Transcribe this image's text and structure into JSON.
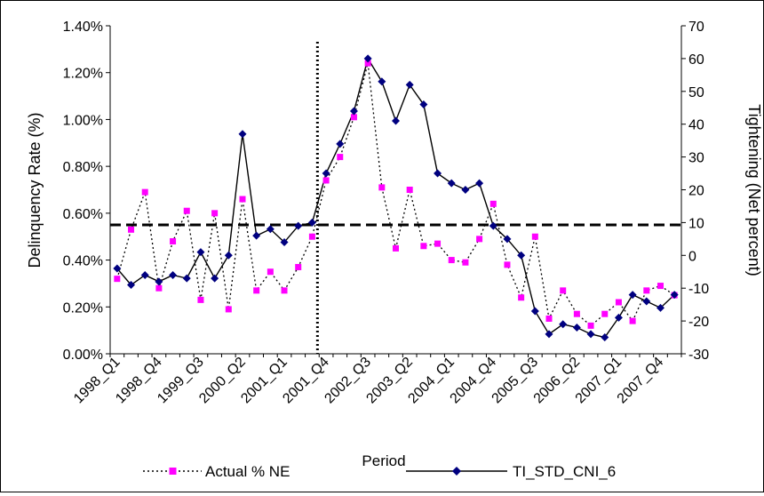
{
  "chart_data": {
    "type": "line",
    "x_tick_labels": [
      "1998_Q1",
      "1998_Q4",
      "1999_Q3",
      "2000_Q2",
      "2001_Q1",
      "2001_Q4",
      "2002_Q3",
      "2003_Q2",
      "2004_Q1",
      "2004_Q4",
      "2005_Q3",
      "2006_Q2",
      "2007_Q1",
      "2007_Q4"
    ],
    "xlabel": "Period",
    "ylabel_left": "Delinquency Rate (%)",
    "ylabel_right": "Tightening (Net percent)",
    "ylim_left": [
      0,
      1.4
    ],
    "ylim_right": [
      -30,
      70
    ],
    "left_ticks": [
      "0.00%",
      "0.20%",
      "0.40%",
      "0.60%",
      "0.80%",
      "1.00%",
      "1.20%",
      "1.40%"
    ],
    "right_ticks": [
      "-30",
      "-20",
      "-10",
      "0",
      "10",
      "20",
      "30",
      "40",
      "50",
      "60",
      "70"
    ],
    "legend_position": "bottom",
    "grid": false,
    "horizontal_reference_line": {
      "axis": "left",
      "value": 0.55,
      "style": "dashed"
    },
    "vertical_reference_line": {
      "period_index": 15,
      "style": "dotted"
    },
    "series": [
      {
        "name": "Actual % NE",
        "axis": "left",
        "color": "#ff00ff",
        "line_style": "dotted",
        "marker": "square",
        "values": [
          0.32,
          0.53,
          0.69,
          0.28,
          0.48,
          0.61,
          0.23,
          0.6,
          0.19,
          0.66,
          0.27,
          0.35,
          0.27,
          0.37,
          0.5,
          0.74,
          0.84,
          1.01,
          1.24,
          0.71,
          0.45,
          0.7,
          0.46,
          0.47,
          0.4,
          0.39,
          0.49,
          0.64,
          0.38,
          0.24,
          0.5,
          0.15,
          0.27,
          0.17,
          0.12,
          0.17,
          0.22,
          0.14,
          0.27,
          0.29,
          0.25
        ]
      },
      {
        "name": "TI_STD_CNI_6",
        "axis": "right",
        "color": "#000080",
        "line_style": "solid",
        "marker": "diamond",
        "values": [
          -4,
          -9,
          -6,
          -8,
          -6,
          -7,
          1,
          -7,
          0,
          37,
          6,
          8,
          4,
          9,
          10,
          25,
          34,
          44,
          60,
          53,
          41,
          52,
          46,
          25,
          22,
          20,
          22,
          9,
          5,
          0,
          -17,
          -24,
          -21,
          -22,
          -24,
          -25,
          -19,
          -12,
          -14,
          -16,
          -12
        ]
      }
    ]
  }
}
